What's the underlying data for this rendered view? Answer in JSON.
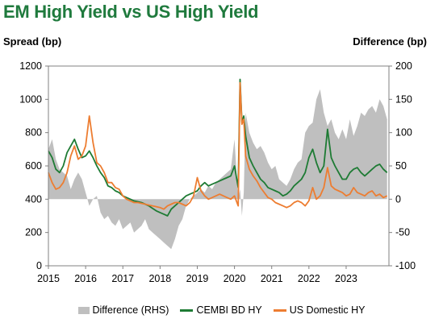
{
  "title": "EM High Yield vs US High Yield",
  "left_axis_title": "Spread (bp)",
  "right_axis_title": "Difference (bp)",
  "colors": {
    "title": "#1f7a3d",
    "difference": "#bfbfbf",
    "cembi": "#1e7b34",
    "us_domestic": "#ed7d31"
  },
  "chart_data": {
    "type": "line",
    "title": "EM High Yield vs US High Yield",
    "ylabel": "Spread (bp)",
    "y2label": "Difference (bp)",
    "ylim": [
      0,
      1200
    ],
    "y2lim": [
      -100,
      200
    ],
    "xlim": [
      2015,
      2024.15
    ],
    "yticks": [
      "0",
      "200",
      "400",
      "600",
      "800",
      "1000",
      "1200"
    ],
    "y2ticks": [
      "-100",
      "-50",
      "0",
      "50",
      "100",
      "150",
      "200"
    ],
    "xticks": [
      "2015",
      "2016",
      "2017",
      "2018",
      "2019",
      "2020",
      "2021",
      "2022",
      "2023"
    ],
    "grid": false,
    "legend_position": "bottom",
    "series": [
      {
        "name": "Difference (RHS)",
        "type": "area",
        "axis": "right",
        "color": "#bfbfbf",
        "x": [
          2015.0,
          2015.1,
          2015.2,
          2015.3,
          2015.4,
          2015.5,
          2015.6,
          2015.7,
          2015.8,
          2015.9,
          2016.0,
          2016.1,
          2016.2,
          2016.3,
          2016.4,
          2016.5,
          2016.6,
          2016.7,
          2016.8,
          2016.9,
          2017.0,
          2017.1,
          2017.2,
          2017.3,
          2017.4,
          2017.5,
          2017.6,
          2017.7,
          2017.8,
          2017.9,
          2018.0,
          2018.1,
          2018.2,
          2018.3,
          2018.4,
          2018.5,
          2018.6,
          2018.7,
          2018.8,
          2018.9,
          2019.0,
          2019.1,
          2019.2,
          2019.3,
          2019.4,
          2019.5,
          2019.6,
          2019.7,
          2019.8,
          2019.9,
          2020.0,
          2020.1,
          2020.15,
          2020.2,
          2020.25,
          2020.3,
          2020.4,
          2020.5,
          2020.6,
          2020.7,
          2020.8,
          2020.9,
          2021.0,
          2021.1,
          2021.2,
          2021.3,
          2021.4,
          2021.5,
          2021.6,
          2021.7,
          2021.8,
          2021.9,
          2022.0,
          2022.1,
          2022.2,
          2022.3,
          2022.4,
          2022.5,
          2022.6,
          2022.7,
          2022.8,
          2022.9,
          2023.0,
          2023.1,
          2023.2,
          2023.3,
          2023.4,
          2023.5,
          2023.6,
          2023.7,
          2023.8,
          2023.9,
          2024.0,
          2024.1
        ],
        "values": [
          75,
          90,
          60,
          45,
          40,
          35,
          15,
          30,
          40,
          30,
          10,
          -10,
          0,
          5,
          -20,
          -30,
          -25,
          -35,
          -40,
          -30,
          -45,
          -40,
          -35,
          -50,
          -45,
          -40,
          -30,
          -45,
          -50,
          -55,
          -60,
          -65,
          -70,
          -75,
          -60,
          -40,
          -30,
          -10,
          0,
          5,
          10,
          15,
          10,
          20,
          15,
          25,
          30,
          35,
          40,
          45,
          90,
          0,
          15,
          -25,
          10,
          130,
          100,
          85,
          75,
          80,
          70,
          55,
          45,
          50,
          30,
          25,
          20,
          30,
          45,
          55,
          60,
          100,
          110,
          115,
          150,
          165,
          130,
          110,
          120,
          100,
          90,
          105,
          90,
          120,
          95,
          110,
          130,
          125,
          135,
          140,
          130,
          150,
          140,
          120
        ]
      },
      {
        "name": "CEMBI BD HY",
        "type": "line",
        "axis": "left",
        "color": "#1e7b34",
        "x": [
          2015.0,
          2015.1,
          2015.2,
          2015.3,
          2015.4,
          2015.5,
          2015.6,
          2015.7,
          2015.8,
          2015.9,
          2016.0,
          2016.1,
          2016.2,
          2016.3,
          2016.4,
          2016.5,
          2016.6,
          2016.7,
          2016.8,
          2016.9,
          2017.0,
          2017.1,
          2017.2,
          2017.3,
          2017.4,
          2017.5,
          2017.6,
          2017.7,
          2017.8,
          2017.9,
          2018.0,
          2018.1,
          2018.2,
          2018.3,
          2018.4,
          2018.5,
          2018.6,
          2018.7,
          2018.8,
          2018.9,
          2019.0,
          2019.1,
          2019.2,
          2019.3,
          2019.4,
          2019.5,
          2019.6,
          2019.7,
          2019.8,
          2019.9,
          2020.0,
          2020.1,
          2020.15,
          2020.2,
          2020.25,
          2020.3,
          2020.4,
          2020.5,
          2020.6,
          2020.7,
          2020.8,
          2020.9,
          2021.0,
          2021.1,
          2021.2,
          2021.3,
          2021.4,
          2021.5,
          2021.6,
          2021.7,
          2021.8,
          2021.9,
          2022.0,
          2022.1,
          2022.2,
          2022.3,
          2022.4,
          2022.5,
          2022.6,
          2022.7,
          2022.8,
          2022.9,
          2023.0,
          2023.1,
          2023.2,
          2023.3,
          2023.4,
          2023.5,
          2023.6,
          2023.7,
          2023.8,
          2023.9,
          2024.0,
          2024.1
        ],
        "values": [
          690,
          650,
          580,
          560,
          600,
          680,
          720,
          760,
          700,
          650,
          660,
          690,
          650,
          600,
          560,
          530,
          480,
          470,
          450,
          440,
          420,
          410,
          400,
          390,
          385,
          380,
          370,
          360,
          345,
          330,
          320,
          310,
          300,
          340,
          360,
          380,
          400,
          420,
          430,
          440,
          450,
          480,
          500,
          480,
          490,
          500,
          510,
          520,
          530,
          540,
          600,
          470,
          1120,
          860,
          900,
          780,
          650,
          600,
          560,
          520,
          500,
          470,
          460,
          450,
          440,
          420,
          430,
          450,
          480,
          500,
          520,
          560,
          650,
          700,
          620,
          560,
          600,
          820,
          650,
          600,
          560,
          520,
          520,
          560,
          580,
          590,
          560,
          540,
          560,
          580,
          600,
          610,
          580,
          560
        ]
      },
      {
        "name": "US Domestic HY",
        "type": "line",
        "axis": "left",
        "color": "#ed7d31",
        "x": [
          2015.0,
          2015.1,
          2015.2,
          2015.3,
          2015.4,
          2015.5,
          2015.6,
          2015.7,
          2015.8,
          2015.9,
          2016.0,
          2016.1,
          2016.2,
          2016.3,
          2016.4,
          2016.5,
          2016.6,
          2016.7,
          2016.8,
          2016.9,
          2017.0,
          2017.1,
          2017.2,
          2017.3,
          2017.4,
          2017.5,
          2017.6,
          2017.7,
          2017.8,
          2017.9,
          2018.0,
          2018.1,
          2018.2,
          2018.3,
          2018.4,
          2018.5,
          2018.6,
          2018.7,
          2018.8,
          2018.9,
          2019.0,
          2019.1,
          2019.2,
          2019.3,
          2019.4,
          2019.5,
          2019.6,
          2019.7,
          2019.8,
          2019.9,
          2020.0,
          2020.1,
          2020.15,
          2020.2,
          2020.25,
          2020.3,
          2020.4,
          2020.5,
          2020.6,
          2020.7,
          2020.8,
          2020.9,
          2021.0,
          2021.1,
          2021.2,
          2021.3,
          2021.4,
          2021.5,
          2021.6,
          2021.7,
          2021.8,
          2021.9,
          2022.0,
          2022.1,
          2022.2,
          2022.3,
          2022.4,
          2022.5,
          2022.6,
          2022.7,
          2022.8,
          2022.9,
          2023.0,
          2023.1,
          2023.2,
          2023.3,
          2023.4,
          2023.5,
          2023.6,
          2023.7,
          2023.8,
          2023.9,
          2024.0,
          2024.1
        ],
        "values": [
          560,
          500,
          460,
          470,
          500,
          560,
          660,
          720,
          640,
          660,
          720,
          900,
          740,
          620,
          600,
          560,
          500,
          500,
          470,
          460,
          420,
          400,
          390,
          380,
          380,
          375,
          370,
          365,
          360,
          355,
          350,
          340,
          360,
          370,
          380,
          380,
          370,
          360,
          380,
          420,
          530,
          450,
          420,
          400,
          410,
          420,
          430,
          420,
          410,
          400,
          420,
          360,
          1100,
          850,
          880,
          660,
          580,
          540,
          510,
          470,
          440,
          410,
          400,
          380,
          370,
          360,
          350,
          360,
          380,
          390,
          380,
          360,
          390,
          470,
          400,
          420,
          470,
          590,
          480,
          460,
          450,
          440,
          420,
          430,
          470,
          440,
          430,
          420,
          440,
          450,
          420,
          430,
          410,
          420
        ]
      }
    ]
  }
}
